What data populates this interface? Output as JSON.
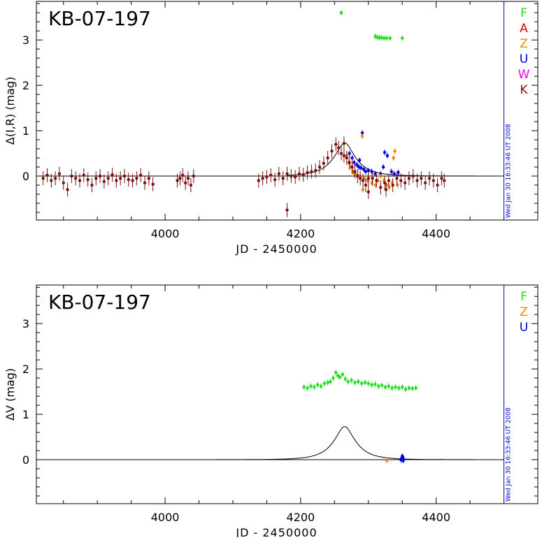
{
  "chart_data": [
    {
      "type": "scatter",
      "title": "KB-07-197",
      "xlabel": "JD - 2450000",
      "ylabel": "Δ(I,R) (mag)",
      "xlim": [
        3810,
        4550
      ],
      "ylim": [
        -0.97,
        3.85
      ],
      "y_inverted": false,
      "xticks": [
        4000,
        4200,
        4400
      ],
      "xtick_labels": [
        "4000",
        "4200",
        "4400"
      ],
      "yticks": [
        0,
        1,
        2,
        3
      ],
      "ytick_labels": [
        "0",
        "1",
        "2",
        "3"
      ],
      "timestamp": "Wed Jan 30 16:33:46 UT 2008",
      "timestamp_x": 4500,
      "legend_placement": "top-right",
      "legend": [
        {
          "name": "F",
          "color": "#22dd22"
        },
        {
          "name": "A",
          "color": "#dd0000"
        },
        {
          "name": "Z",
          "color": "#ee8800"
        },
        {
          "name": "U",
          "color": "#0000dd"
        },
        {
          "name": "W",
          "color": "#ee00ee"
        },
        {
          "name": "K",
          "color": "#7a1010"
        }
      ],
      "baseline": 0,
      "model": {
        "t0": 4265,
        "peak": 0.73,
        "u0": 0.35,
        "tE": 32,
        "color": "#000000"
      },
      "series": [
        {
          "name": "F",
          "color": "#22dd22",
          "x": [
            4260,
            4310,
            4313,
            4316,
            4319,
            4323,
            4327,
            4332,
            4350
          ],
          "y": [
            3.6,
            3.08,
            3.06,
            3.05,
            3.05,
            3.04,
            3.04,
            3.04,
            3.04
          ]
        },
        {
          "name": "U",
          "color": "#0000dd",
          "x": [
            4272,
            4276,
            4279,
            4283,
            4286,
            4289,
            4291,
            4293,
            4296,
            4300,
            4305,
            4310,
            4318,
            4324,
            4328,
            4334,
            4338,
            4344,
            4287,
            4322
          ],
          "y": [
            0.5,
            0.4,
            0.3,
            0.25,
            0.2,
            0.18,
            0.95,
            0.15,
            0.1,
            0.12,
            0.1,
            0.05,
            0.05,
            0.52,
            0.45,
            0.1,
            0.05,
            0.08,
            0.35,
            0.2
          ]
        },
        {
          "name": "Z",
          "color": "#ee8800",
          "x": [
            4268,
            4271,
            4274,
            4277,
            4280,
            4284,
            4288,
            4291,
            4294,
            4299,
            4305,
            4310,
            4314,
            4318,
            4323,
            4327,
            4331,
            4335,
            4339,
            4343,
            4292,
            4337
          ],
          "y": [
            0.45,
            0.3,
            0.2,
            0.1,
            0.05,
            0.02,
            0.0,
            0.88,
            -0.05,
            -0.1,
            -0.15,
            -0.2,
            -0.1,
            0.0,
            -0.1,
            -0.2,
            -0.25,
            -0.15,
            0.55,
            -0.2,
            -0.3,
            0.4
          ]
        },
        {
          "name": "K",
          "color": "#7a1010",
          "x": [
            3820,
            3826,
            3832,
            3838,
            3844,
            3850,
            3856,
            3862,
            3868,
            3874,
            3880,
            3886,
            3892,
            3898,
            3904,
            3910,
            3916,
            3922,
            3928,
            3934,
            3940,
            3946,
            3952,
            3958,
            3964,
            3970,
            3976,
            3982,
            4018,
            4022,
            4026,
            4030,
            4034,
            4038,
            4042,
            4138,
            4144,
            4150,
            4156,
            4162,
            4168,
            4174,
            4180,
            4186,
            4192,
            4198,
            4204,
            4210,
            4216,
            4222,
            4228,
            4234,
            4240,
            4246,
            4252,
            4256,
            4260,
            4264,
            4268,
            4272,
            4276,
            4280,
            4284,
            4288,
            4292,
            4296,
            4300,
            4306,
            4312,
            4318,
            4324,
            4330,
            4336,
            4342,
            4348,
            4354,
            4360,
            4366,
            4372,
            4378,
            4384,
            4390,
            4396,
            4402,
            4408,
            4412,
            4180,
            4264,
            4300,
            4326
          ],
          "y": [
            -0.05,
            0.02,
            -0.1,
            -0.05,
            0.05,
            -0.15,
            -0.3,
            0.0,
            -0.05,
            -0.1,
            0.02,
            -0.08,
            -0.2,
            -0.05,
            0.0,
            -0.12,
            -0.05,
            0.03,
            -0.1,
            -0.05,
            0.0,
            -0.08,
            -0.1,
            -0.05,
            0.02,
            -0.15,
            -0.05,
            -0.18,
            -0.1,
            -0.05,
            0.02,
            -0.15,
            -0.05,
            -0.2,
            0.0,
            -0.1,
            -0.05,
            -0.02,
            0.02,
            -0.08,
            0.05,
            -0.05,
            0.05,
            0.0,
            -0.02,
            0.05,
            0.03,
            0.08,
            0.1,
            0.12,
            0.2,
            0.28,
            0.4,
            0.55,
            0.7,
            0.62,
            0.5,
            0.45,
            0.4,
            0.3,
            0.2,
            0.1,
            0.0,
            -0.05,
            -0.1,
            -0.2,
            -0.35,
            -0.05,
            -0.1,
            -0.25,
            -0.15,
            -0.1,
            -0.2,
            -0.05,
            -0.1,
            -0.15,
            -0.05,
            0.0,
            -0.1,
            -0.05,
            -0.15,
            -0.05,
            -0.1,
            -0.2,
            -0.05,
            -0.1,
            -0.75,
            0.72,
            -0.05,
            -0.3
          ]
        }
      ]
    },
    {
      "type": "scatter",
      "title": "KB-07-197",
      "xlabel": "JD - 2450000",
      "ylabel": "ΔV (mag)",
      "xlim": [
        3810,
        4550
      ],
      "ylim": [
        -0.97,
        3.85
      ],
      "xticks": [
        4000,
        4200,
        4400
      ],
      "xtick_labels": [
        "4000",
        "4200",
        "4400"
      ],
      "yticks": [
        0,
        1,
        2,
        3
      ],
      "ytick_labels": [
        "0",
        "1",
        "2",
        "3"
      ],
      "timestamp": "Wed Jan 30 16:33:46 UT 2008",
      "timestamp_x": 4500,
      "legend_placement": "top-right",
      "legend": [
        {
          "name": "F",
          "color": "#22dd22"
        },
        {
          "name": "Z",
          "color": "#ee8800"
        },
        {
          "name": "U",
          "color": "#0000dd"
        }
      ],
      "baseline": 0,
      "model": {
        "t0": 4265,
        "peak": 0.73,
        "u0": 0.35,
        "tE": 32,
        "color": "#000000",
        "x_start": 3810
      },
      "series": [
        {
          "name": "F",
          "color": "#22dd22",
          "x": [
            4205,
            4210,
            4215,
            4220,
            4225,
            4230,
            4235,
            4240,
            4244,
            4248,
            4252,
            4255,
            4258,
            4262,
            4266,
            4270,
            4275,
            4280,
            4285,
            4290,
            4295,
            4300,
            4305,
            4310,
            4315,
            4320,
            4325,
            4330,
            4335,
            4340,
            4345,
            4350,
            4355,
            4360,
            4365,
            4370
          ],
          "y": [
            1.6,
            1.58,
            1.62,
            1.6,
            1.65,
            1.62,
            1.68,
            1.7,
            1.72,
            1.8,
            1.92,
            1.85,
            1.82,
            1.88,
            1.78,
            1.72,
            1.75,
            1.7,
            1.72,
            1.68,
            1.7,
            1.68,
            1.65,
            1.66,
            1.62,
            1.64,
            1.6,
            1.62,
            1.58,
            1.6,
            1.58,
            1.6,
            1.55,
            1.58,
            1.57,
            1.58
          ]
        },
        {
          "name": "Z",
          "color": "#ee8800",
          "x": [
            4327
          ],
          "y": [
            -0.02
          ]
        },
        {
          "name": "U",
          "color": "#0000dd",
          "x": [
            4348,
            4349,
            4350,
            4351,
            4352,
            4350,
            4351
          ],
          "y": [
            0.0,
            0.03,
            0.02,
            0.05,
            0.0,
            0.08,
            -0.02
          ]
        }
      ]
    }
  ]
}
